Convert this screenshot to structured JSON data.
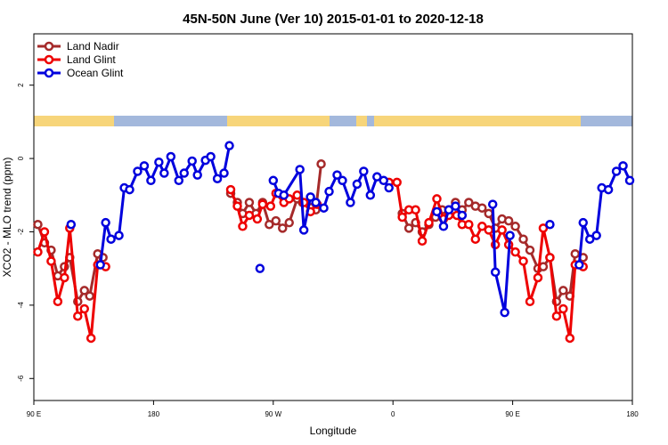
{
  "chart_data": {
    "type": "line",
    "title": "45N-50N June (Ver 10)   2015-01-01 to 2020-12-18",
    "x_label": "Longitude",
    "y_label": "XCO2 - MLO trend (ppm)",
    "xlim": [
      90,
      540
    ],
    "ylim": [
      -6.6,
      3.4
    ],
    "xticks": [
      {
        "value": 90,
        "label": "90 E"
      },
      {
        "value": 180,
        "label": "180"
      },
      {
        "value": 270,
        "label": "90 W"
      },
      {
        "value": 360,
        "label": "0"
      },
      {
        "value": 450,
        "label": "90 E"
      },
      {
        "value": 540,
        "label": "180"
      }
    ],
    "yticks": [
      2,
      0,
      -2,
      -4,
      -6
    ],
    "legend": "top-left",
    "series": [
      {
        "name": "Land Nadir",
        "color": "#a52a2a",
        "x": [
          93,
          98,
          103,
          108,
          113,
          117,
          123,
          128,
          132,
          138,
          142,
          null,
          238,
          243,
          247,
          252,
          257,
          262,
          267,
          272,
          277,
          282,
          288,
          292,
          298,
          302,
          306,
          null,
          367,
          372,
          377,
          382,
          387,
          392,
          397,
          402,
          407,
          412,
          417,
          422,
          427,
          432,
          437,
          442,
          447,
          452,
          458,
          463,
          469,
          473,
          478,
          483,
          488,
          493,
          497,
          503
        ],
        "values": [
          -1.8,
          -2.3,
          -2.5,
          -3.2,
          -2.95,
          -2.7,
          -3.9,
          -3.6,
          -3.75,
          -2.6,
          -2.7,
          null,
          -0.95,
          -1.2,
          -1.5,
          -1.2,
          -1.5,
          -1.2,
          -1.8,
          -1.7,
          -1.9,
          -1.75,
          -1.1,
          -1.2,
          -1.15,
          -1.4,
          -0.15,
          null,
          -1.5,
          -1.9,
          -1.75,
          -2.0,
          -1.8,
          -1.6,
          -1.4,
          -1.4,
          -1.2,
          -1.4,
          -1.2,
          -1.3,
          -1.35,
          -1.5,
          -1.9,
          -1.65,
          -1.7,
          -1.85,
          -2.2,
          -2.5,
          -3.0,
          -2.95,
          -2.7,
          -3.9,
          -3.6,
          -3.75,
          -2.6,
          -2.7
        ]
      },
      {
        "name": "Land Glint",
        "color": "#ee0000",
        "x": [
          93,
          98,
          103,
          108,
          113,
          117,
          123,
          128,
          133,
          138,
          144,
          null,
          238,
          243,
          247,
          252,
          258,
          262,
          268,
          272,
          278,
          282,
          288,
          293,
          298,
          303,
          null,
          357,
          363,
          367,
          372,
          377,
          382,
          387,
          393,
          398,
          402,
          408,
          412,
          417,
          422,
          427,
          432,
          437,
          442,
          447,
          452,
          458,
          463,
          469,
          473,
          478,
          483,
          488,
          493,
          497,
          503
        ],
        "values": [
          -2.55,
          -2.0,
          -2.8,
          -3.9,
          -3.25,
          -1.9,
          -4.3,
          -4.1,
          -4.9,
          -2.9,
          -2.95,
          null,
          -0.85,
          -1.3,
          -1.85,
          -1.55,
          -1.65,
          -1.25,
          -1.3,
          -0.95,
          -1.2,
          -1.1,
          -1.0,
          -1.2,
          -1.45,
          -1.25,
          null,
          -0.65,
          -0.65,
          -1.6,
          -1.4,
          -1.4,
          -2.25,
          -1.75,
          -1.1,
          -1.65,
          -1.55,
          -1.55,
          -1.8,
          -1.8,
          -2.2,
          -1.85,
          -1.95,
          -2.35,
          -1.95,
          -2.35,
          -2.55,
          -2.8,
          -3.9,
          -3.25,
          -1.9,
          -2.7,
          -4.3,
          -4.1,
          -4.9,
          -2.9,
          -2.95
        ]
      },
      {
        "name": "Ocean Glint",
        "color": "#0000dd",
        "x": [
          118,
          null,
          140,
          144,
          148,
          154,
          158,
          162,
          168,
          173,
          178,
          184,
          188,
          193,
          199,
          203,
          209,
          213,
          219,
          223,
          228,
          233,
          237,
          null,
          260,
          null,
          270,
          274,
          278,
          290,
          293,
          298,
          302,
          308,
          312,
          318,
          322,
          328,
          333,
          338,
          343,
          348,
          353,
          357,
          null,
          393,
          398,
          402,
          407,
          412,
          null,
          435,
          437,
          444,
          448,
          null,
          478,
          null,
          500,
          503,
          508,
          513,
          517,
          522,
          528,
          533,
          538
        ],
        "values": [
          -1.8,
          null,
          -2.9,
          -1.75,
          -2.2,
          -2.1,
          -0.8,
          -0.85,
          -0.35,
          -0.2,
          -0.6,
          -0.1,
          -0.4,
          0.05,
          -0.6,
          -0.4,
          -0.07,
          -0.45,
          -0.05,
          0.05,
          -0.55,
          -0.4,
          0.35,
          null,
          -3.0,
          null,
          -0.6,
          -0.95,
          -1.0,
          -0.3,
          -1.95,
          -1.05,
          -1.2,
          -1.35,
          -0.9,
          -0.45,
          -0.6,
          -1.2,
          -0.7,
          -0.35,
          -1.0,
          -0.5,
          -0.6,
          -0.8,
          null,
          -1.45,
          -1.85,
          -1.4,
          -1.3,
          -1.55,
          null,
          -1.25,
          -3.1,
          -4.2,
          -2.1,
          null,
          -1.8,
          null,
          -2.9,
          -1.75,
          -2.2,
          -2.1,
          -0.8,
          -0.85,
          -0.35,
          -0.2,
          -0.6
        ]
      }
    ]
  }
}
